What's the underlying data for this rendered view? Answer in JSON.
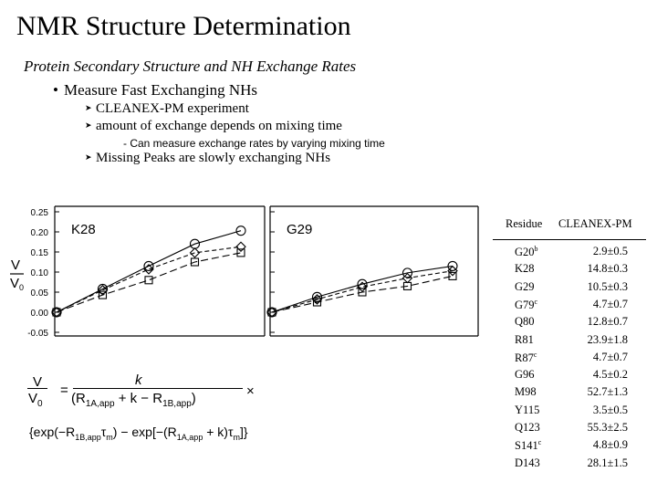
{
  "slide": {
    "title": "NMR Structure Determination",
    "subtitle": "Protein Secondary Structure and NH Exchange Rates",
    "bullet": "Measure Fast Exchanging NHs",
    "subbullets": [
      "CLEANEX-PM experiment",
      "amount of exchange depends on mixing time",
      "Missing Peaks are slowly exchanging NHs"
    ],
    "subsub": "- Can measure exchange rates by varying mixing time"
  },
  "chart_data": [
    {
      "type": "line",
      "panel_label": "K28",
      "ylabel": "V/V0",
      "yticks": [
        "0.25",
        "0.20",
        "0.15",
        "0.10",
        "0.05",
        "0.00",
        "-0.05"
      ],
      "ylim": [
        -0.05,
        0.25
      ],
      "x": [
        0,
        1,
        2,
        3,
        4
      ],
      "series": [
        {
          "marker": "circle",
          "values": [
            0.0,
            0.058,
            0.115,
            0.17,
            0.203
          ]
        },
        {
          "marker": "diamond",
          "values": [
            0.0,
            0.055,
            0.107,
            0.148,
            0.163
          ]
        },
        {
          "marker": "square",
          "values": [
            0.0,
            0.043,
            0.08,
            0.125,
            0.148
          ]
        }
      ]
    },
    {
      "type": "line",
      "panel_label": "G29",
      "ylim": [
        -0.05,
        0.25
      ],
      "x": [
        0,
        1,
        2,
        3,
        4
      ],
      "series": [
        {
          "marker": "circle",
          "values": [
            0.0,
            0.038,
            0.07,
            0.098,
            0.115
          ]
        },
        {
          "marker": "diamond",
          "values": [
            0.0,
            0.032,
            0.063,
            0.085,
            0.103
          ]
        },
        {
          "marker": "square",
          "values": [
            0.0,
            0.025,
            0.05,
            0.065,
            0.09
          ]
        }
      ]
    }
  ],
  "table": {
    "header_residue": "Residue",
    "header_value": "CLEANEX-PM",
    "rows": [
      {
        "residue": "G20",
        "sup": "b",
        "value": "2.9±0.5"
      },
      {
        "residue": "K28",
        "sup": "",
        "value": "14.8±0.3"
      },
      {
        "residue": "G29",
        "sup": "",
        "value": "10.5±0.3"
      },
      {
        "residue": "G79",
        "sup": "c",
        "value": "4.7±0.7"
      },
      {
        "residue": "Q80",
        "sup": "",
        "value": "12.8±0.7"
      },
      {
        "residue": "R81",
        "sup": "",
        "value": "23.9±1.8"
      },
      {
        "residue": "R87",
        "sup": "c",
        "value": "4.7±0.7"
      },
      {
        "residue": "G96",
        "sup": "",
        "value": "4.5±0.2"
      },
      {
        "residue": "M98",
        "sup": "",
        "value": "52.7±1.3"
      },
      {
        "residue": "Y115",
        "sup": "",
        "value": "3.5±0.5"
      },
      {
        "residue": "Q123",
        "sup": "",
        "value": "55.3±2.5"
      },
      {
        "residue": "S141",
        "sup": "c",
        "value": "4.8±0.9"
      },
      {
        "residue": "D143",
        "sup": "",
        "value": "28.1±1.5"
      }
    ]
  },
  "formula": {
    "lhs_num": "V",
    "lhs_den": "V",
    "lhs_den_sub": "0",
    "eq": "=",
    "frac_num": "k",
    "paren_open": "(R",
    "r1a_sub": "1A,app",
    "plus_k": " + k − R",
    "r1b_sub": "1B,app",
    "paren_close": ")",
    "times": "×",
    "line2_a": "{exp(−R",
    "line2_sub1": "1B,app",
    "line2_b": "τ",
    "line2_sub2": "m",
    "line2_c": ") − exp[−(R",
    "line2_sub3": "1A,app",
    "line2_d": " + k)τ",
    "line2_sub4": "m",
    "line2_e": "]}"
  }
}
